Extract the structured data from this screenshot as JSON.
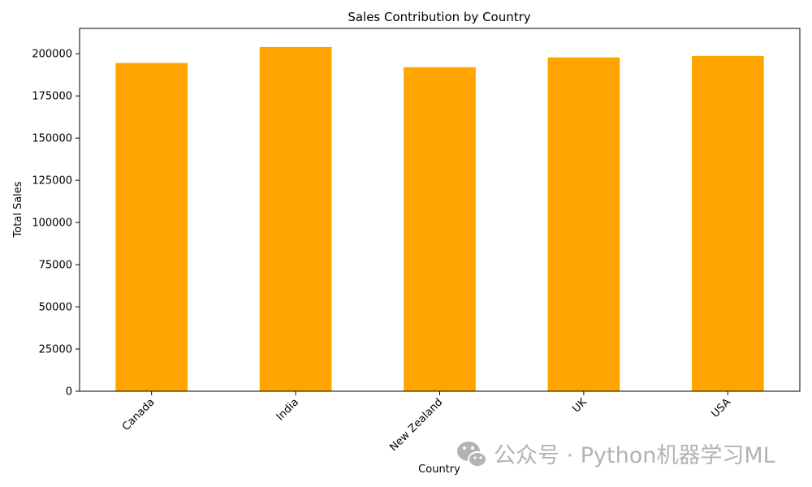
{
  "chart_data": {
    "type": "bar",
    "title": "Sales Contribution by Country",
    "xlabel": "Country",
    "ylabel": "Total Sales",
    "categories": [
      "Canada",
      "India",
      "New Zealand",
      "UK",
      "USA"
    ],
    "values": [
      194500,
      204000,
      192000,
      197800,
      198700
    ],
    "ylim": [
      0,
      215000
    ],
    "yticks": [
      0,
      25000,
      50000,
      75000,
      100000,
      125000,
      150000,
      175000,
      200000
    ],
    "bar_color": "#ffa500",
    "grid": false,
    "legend": "none"
  },
  "watermark": {
    "icon": "wechat-icon",
    "text": "公众号 · Python机器学习ML",
    "color": "#b3b3b3"
  }
}
